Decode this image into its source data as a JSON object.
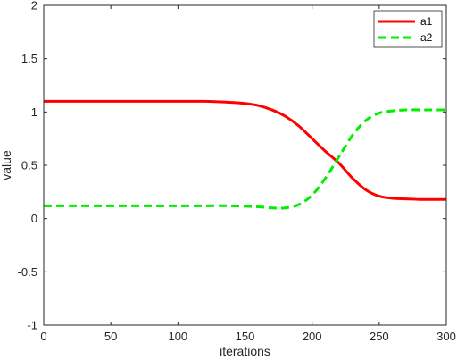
{
  "chart_data": {
    "type": "line",
    "xlabel": "iterations",
    "ylabel": "value",
    "xlim": [
      0,
      300
    ],
    "ylim": [
      -1,
      2
    ],
    "xticks": [
      0,
      50,
      100,
      150,
      200,
      250,
      300
    ],
    "yticks": [
      -1,
      -0.5,
      0,
      0.5,
      1,
      1.5,
      2
    ],
    "grid": false,
    "legend_position": "top-right",
    "series": [
      {
        "name": "a1",
        "color": "#ff0000",
        "style": "solid",
        "x": [
          0,
          20,
          40,
          60,
          80,
          100,
          120,
          140,
          150,
          160,
          170,
          180,
          190,
          200,
          210,
          220,
          230,
          240,
          250,
          260,
          270,
          280,
          290,
          300
        ],
        "y": [
          1.1,
          1.1,
          1.1,
          1.1,
          1.1,
          1.1,
          1.1,
          1.09,
          1.08,
          1.06,
          1.02,
          0.96,
          0.87,
          0.75,
          0.63,
          0.52,
          0.38,
          0.27,
          0.21,
          0.19,
          0.185,
          0.18,
          0.18,
          0.18
        ]
      },
      {
        "name": "a2",
        "color": "#00ee00",
        "style": "dashed",
        "x": [
          0,
          20,
          40,
          60,
          80,
          100,
          120,
          140,
          160,
          170,
          180,
          190,
          200,
          210,
          220,
          230,
          240,
          250,
          260,
          270,
          280,
          290,
          300
        ],
        "y": [
          0.12,
          0.12,
          0.12,
          0.12,
          0.12,
          0.12,
          0.12,
          0.12,
          0.11,
          0.1,
          0.1,
          0.13,
          0.22,
          0.38,
          0.58,
          0.78,
          0.92,
          0.99,
          1.01,
          1.02,
          1.02,
          1.02,
          1.02
        ]
      }
    ]
  }
}
